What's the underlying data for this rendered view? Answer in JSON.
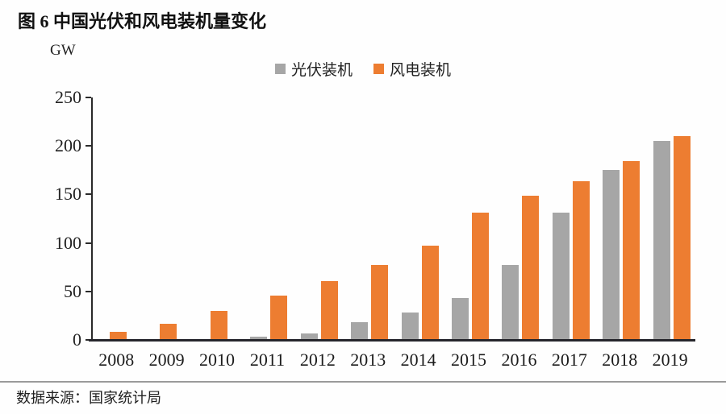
{
  "figure": {
    "title": "图 6 中国光伏和风电装机量变化",
    "source": "数据来源：国家统计局"
  },
  "chart_data": {
    "type": "bar",
    "title": "图 6 中国光伏和风电装机量变化",
    "unit_label": "GW",
    "categories": [
      "2008",
      "2009",
      "2010",
      "2011",
      "2012",
      "2013",
      "2014",
      "2015",
      "2016",
      "2017",
      "2018",
      "2019"
    ],
    "series": [
      {
        "name": "光伏装机",
        "color": "#A6A6A6",
        "values": [
          0,
          0,
          0,
          3,
          7,
          18,
          28,
          43,
          77,
          131,
          175,
          205
        ]
      },
      {
        "name": "风电装机",
        "color": "#ED7D31",
        "values": [
          8,
          17,
          30,
          46,
          61,
          77,
          97,
          131,
          149,
          164,
          184,
          210
        ]
      }
    ],
    "ylabel": "GW",
    "ylim": [
      0,
      250
    ],
    "yticks": [
      0,
      50,
      100,
      150,
      200,
      250
    ],
    "legend_position": "top-center",
    "grid": false,
    "source": "数据来源：国家统计局"
  }
}
